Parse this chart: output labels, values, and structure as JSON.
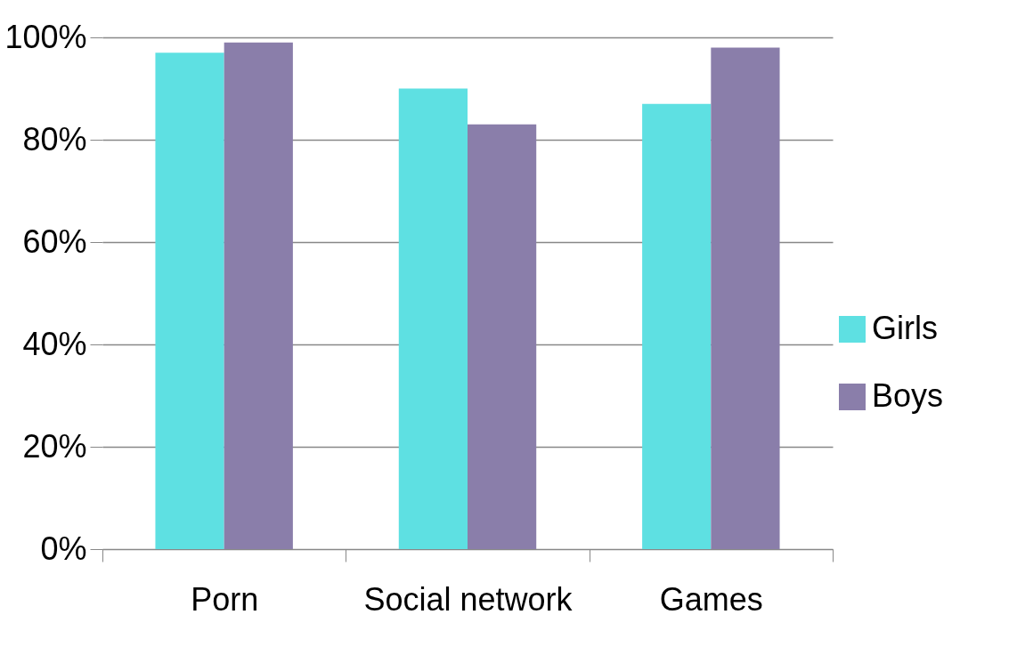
{
  "chart_data": {
    "type": "bar",
    "categories": [
      "Porn",
      "Social network",
      "Games"
    ],
    "series": [
      {
        "name": "Girls",
        "color": "#5ee0e2",
        "values": [
          97,
          90,
          87
        ]
      },
      {
        "name": "Boys",
        "color": "#8a7eaa",
        "values": [
          99,
          83,
          98
        ]
      }
    ],
    "ylim": [
      0,
      100
    ],
    "yticks": [
      {
        "value": 0,
        "label": "0%"
      },
      {
        "value": 20,
        "label": "20%"
      },
      {
        "value": 40,
        "label": "40%"
      },
      {
        "value": 60,
        "label": "60%"
      },
      {
        "value": 80,
        "label": "80%"
      },
      {
        "value": 100,
        "label": "100%"
      }
    ],
    "grid": "y",
    "legend": "right"
  }
}
